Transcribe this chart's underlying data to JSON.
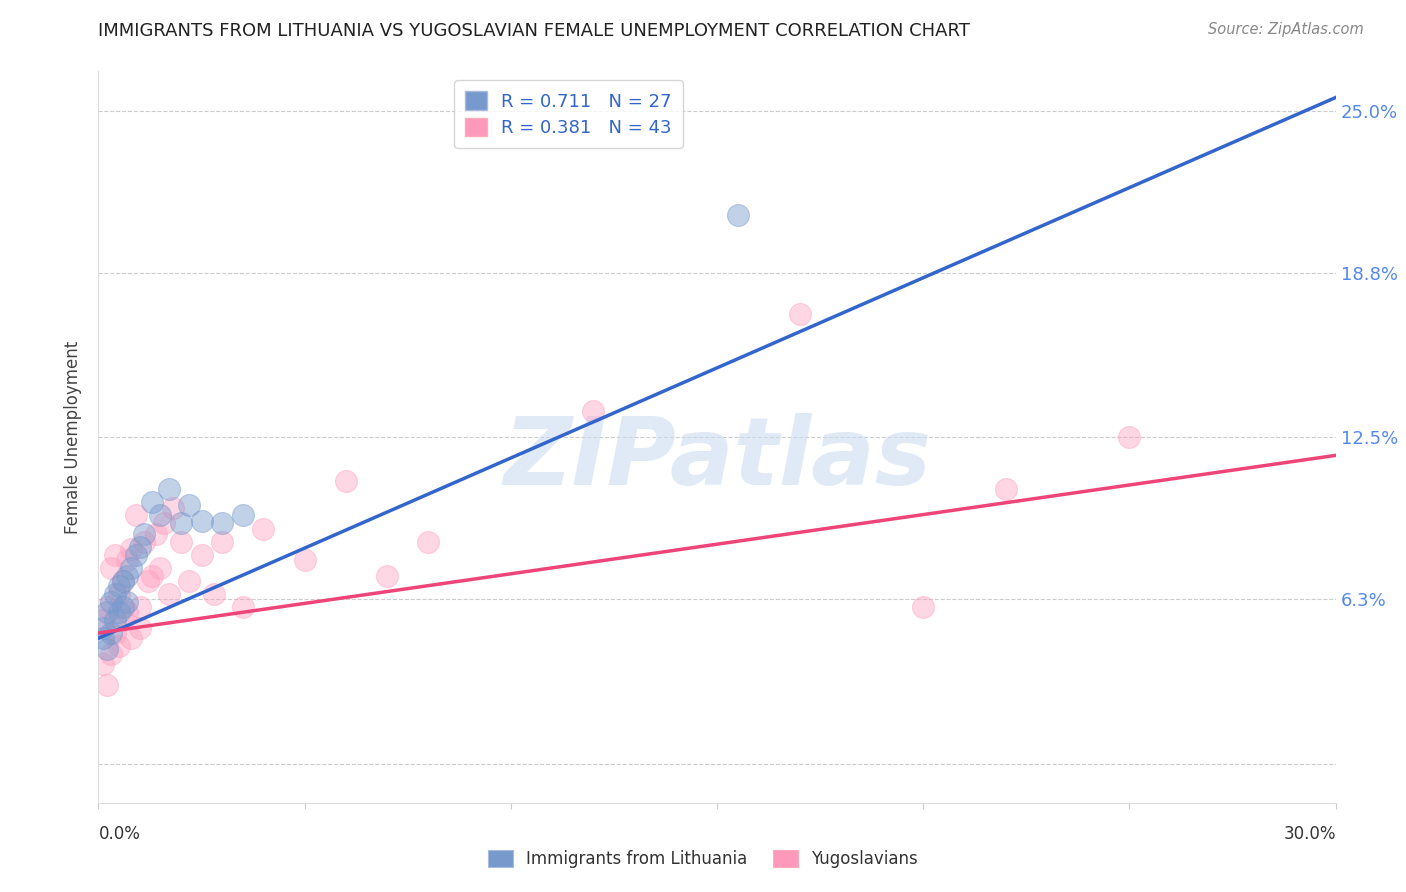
{
  "title": "IMMIGRANTS FROM LITHUANIA VS YUGOSLAVIAN FEMALE UNEMPLOYMENT CORRELATION CHART",
  "source": "Source: ZipAtlas.com",
  "ylabel": "Female Unemployment",
  "y_ticks": [
    0.0,
    0.063,
    0.125,
    0.188,
    0.25
  ],
  "y_tick_labels": [
    "",
    "6.3%",
    "12.5%",
    "18.8%",
    "25.0%"
  ],
  "x_lim": [
    0.0,
    0.3
  ],
  "y_lim": [
    -0.015,
    0.265
  ],
  "legend_label_blue": "Immigrants from Lithuania",
  "legend_label_pink": "Yugoslavians",
  "blue_r": 0.711,
  "blue_n": 27,
  "pink_r": 0.381,
  "pink_n": 43,
  "blue_color": "#7799cc",
  "pink_color": "#ff99bb",
  "blue_line_color": "#3366cc",
  "pink_line_color": "#ee4477",
  "watermark_text": "ZIPatlas",
  "background_color": "#ffffff",
  "grid_color": "#cccccc",
  "blue_scatter_x": [
    0.001,
    0.001,
    0.002,
    0.002,
    0.003,
    0.003,
    0.004,
    0.004,
    0.005,
    0.005,
    0.006,
    0.006,
    0.007,
    0.007,
    0.008,
    0.009,
    0.01,
    0.011,
    0.013,
    0.015,
    0.017,
    0.02,
    0.022,
    0.025,
    0.03,
    0.035,
    0.155
  ],
  "blue_scatter_y": [
    0.052,
    0.048,
    0.058,
    0.044,
    0.062,
    0.05,
    0.065,
    0.055,
    0.068,
    0.058,
    0.07,
    0.06,
    0.062,
    0.072,
    0.075,
    0.08,
    0.083,
    0.088,
    0.1,
    0.095,
    0.105,
    0.092,
    0.099,
    0.093,
    0.092,
    0.095,
    0.21
  ],
  "pink_scatter_x": [
    0.001,
    0.001,
    0.002,
    0.002,
    0.003,
    0.003,
    0.004,
    0.004,
    0.005,
    0.005,
    0.006,
    0.006,
    0.007,
    0.007,
    0.008,
    0.008,
    0.009,
    0.01,
    0.01,
    0.011,
    0.012,
    0.013,
    0.014,
    0.015,
    0.016,
    0.017,
    0.018,
    0.02,
    0.022,
    0.025,
    0.028,
    0.03,
    0.035,
    0.04,
    0.05,
    0.06,
    0.07,
    0.08,
    0.12,
    0.17,
    0.2,
    0.22,
    0.25
  ],
  "pink_scatter_y": [
    0.055,
    0.038,
    0.06,
    0.03,
    0.075,
    0.042,
    0.08,
    0.05,
    0.065,
    0.045,
    0.07,
    0.055,
    0.078,
    0.058,
    0.082,
    0.048,
    0.095,
    0.06,
    0.052,
    0.085,
    0.07,
    0.072,
    0.088,
    0.075,
    0.092,
    0.065,
    0.098,
    0.085,
    0.07,
    0.08,
    0.065,
    0.085,
    0.06,
    0.09,
    0.078,
    0.108,
    0.072,
    0.085,
    0.135,
    0.172,
    0.06,
    0.105,
    0.125
  ],
  "blue_line_x": [
    0.0,
    0.3
  ],
  "blue_line_y": [
    0.048,
    0.255
  ],
  "pink_line_x": [
    0.0,
    0.3
  ],
  "pink_line_y": [
    0.05,
    0.118
  ]
}
